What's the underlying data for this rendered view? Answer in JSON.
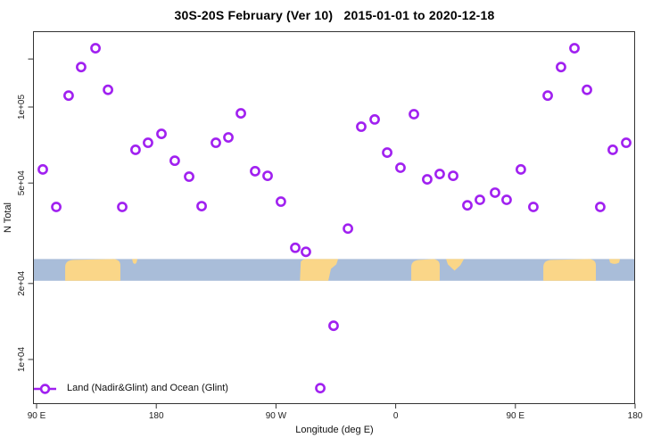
{
  "title": "30S-20S February (Ver 10)   2015-01-01 to 2020-12-18",
  "legend": {
    "label": "Land (Nadir&Glint) and Ocean (Glint)",
    "marker": "open-circle-on-line",
    "marker_color": "#A020F0"
  },
  "chart_data": {
    "type": "scatter",
    "title": "30S-20S February (Ver 10)   2015-01-01 to 2020-12-18",
    "xlabel": "Longitude (deg E)",
    "ylabel": "N Total",
    "x_axis": {
      "note": "longitude wraps: 90E eastward around globe to 180 again",
      "range": [
        90,
        540
      ],
      "ticks": [
        {
          "lon": 90,
          "label": "90 E"
        },
        {
          "lon": 180,
          "label": "180"
        },
        {
          "lon": 270,
          "label": "90 W"
        },
        {
          "lon": 360,
          "label": "0"
        },
        {
          "lon": 450,
          "label": "90 E"
        },
        {
          "lon": 540,
          "label": "180"
        }
      ]
    },
    "y_axis": {
      "scale": "log10",
      "ticks": [
        {
          "value": 155000,
          "label": ""
        },
        {
          "value": 100000,
          "label": "1e+05"
        },
        {
          "value": 50000,
          "label": "5e+04"
        },
        {
          "value": 20000,
          "label": "2e+04"
        },
        {
          "value": 10000,
          "label": "1e+04"
        }
      ]
    },
    "series": [
      {
        "name": "Land (Nadir&Glint) and Ocean (Glint)",
        "color": "#A020F0",
        "marker": "open-circle",
        "points": [
          [
            94.7,
            56600
          ],
          [
            104.8,
            40200
          ],
          [
            114.1,
            111000
          ],
          [
            123.5,
            144000
          ],
          [
            134.3,
            171000
          ],
          [
            143.7,
            117000
          ],
          [
            154.4,
            40200
          ],
          [
            164.4,
            67700
          ],
          [
            173.8,
            72200
          ],
          [
            183.9,
            78300
          ],
          [
            193.9,
            61300
          ],
          [
            204.7,
            53000
          ],
          [
            214.1,
            40500
          ],
          [
            224.8,
            72200
          ],
          [
            234.2,
            75800
          ],
          [
            243.6,
            94400
          ],
          [
            254.3,
            55700
          ],
          [
            263.7,
            53400
          ],
          [
            273.7,
            42200
          ],
          [
            284.5,
            27700
          ],
          [
            292.5,
            26700
          ],
          [
            303.3,
            7700
          ],
          [
            313.3,
            13600
          ],
          [
            324.1,
            33000
          ],
          [
            334.1,
            83600
          ],
          [
            344.2,
            89300
          ],
          [
            353.6,
            66000
          ],
          [
            363.6,
            57500
          ],
          [
            373.7,
            93700
          ],
          [
            383.7,
            51700
          ],
          [
            393.1,
            54300
          ],
          [
            403.2,
            53400
          ],
          [
            413.9,
            40800
          ],
          [
            423.3,
            42900
          ],
          [
            434.7,
            45800
          ],
          [
            443.4,
            42900
          ],
          [
            454.1,
            56600
          ],
          [
            463.5,
            40200
          ],
          [
            474.3,
            111000
          ],
          [
            484.3,
            144000
          ],
          [
            494.4,
            171000
          ],
          [
            503.8,
            117000
          ],
          [
            513.8,
            40200
          ],
          [
            523.2,
            67700
          ],
          [
            533.3,
            72200
          ]
        ]
      }
    ],
    "map_strip": {
      "description": "30S-20S latitude band world map drawn across plot",
      "ocean_color": "#A9BDD9",
      "land_color": "#FAD688",
      "value_top": 25000,
      "value_bottom": 20500,
      "land_segments": [
        {
          "name": "australia",
          "lon": [
            111.5,
            153.0
          ],
          "shape": "blob"
        },
        {
          "name": "new-caledonia",
          "lon": [
            161.8,
            165.8
          ],
          "shape": "top"
        },
        {
          "name": "south-america",
          "lon": [
            288.0,
            316.7
          ],
          "shape": "slant"
        },
        {
          "name": "southern-africa",
          "lon": [
            371.7,
            393.1
          ],
          "shape": "blob"
        },
        {
          "name": "madagascar",
          "lon": [
            397.2,
            411.3
          ],
          "shape": "tri"
        },
        {
          "name": "australia-repeat",
          "lon": [
            471.0,
            510.5
          ],
          "shape": "blob"
        },
        {
          "name": "new-caledonia-repeat",
          "lon": [
            520.5,
            528.6
          ],
          "shape": "top"
        }
      ]
    },
    "style": {
      "axis_color": "#333333",
      "tick_label_color": "#222222",
      "background": "#ffffff"
    }
  }
}
